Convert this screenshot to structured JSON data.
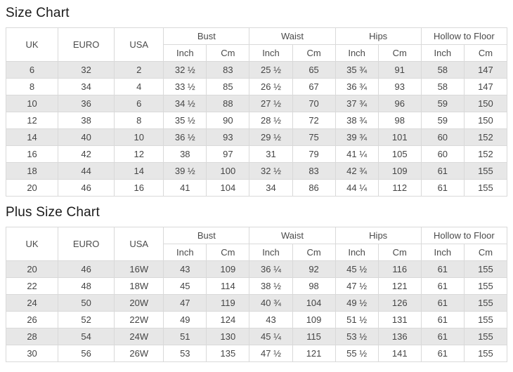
{
  "colors": {
    "stripe": "#e7e7e7",
    "border": "#d9d9d9",
    "cell_text": "#454545",
    "title_text": "#1a1a1a",
    "background": "#ffffff"
  },
  "tables": [
    {
      "title": "Size Chart",
      "simple_headers": [
        "UK",
        "EURO",
        "USA"
      ],
      "group_headers": [
        {
          "label": "Bust",
          "sub": [
            "Inch",
            "Cm"
          ]
        },
        {
          "label": "Waist",
          "sub": [
            "Inch",
            "Cm"
          ]
        },
        {
          "label": "Hips",
          "sub": [
            "Inch",
            "Cm"
          ]
        },
        {
          "label": "Hollow to Floor",
          "sub": [
            "Inch",
            "Cm"
          ]
        }
      ],
      "rows": [
        [
          "6",
          "32",
          "2",
          "32 ½",
          "83",
          "25 ½",
          "65",
          "35 ¾",
          "91",
          "58",
          "147"
        ],
        [
          "8",
          "34",
          "4",
          "33 ½",
          "85",
          "26 ½",
          "67",
          "36 ¾",
          "93",
          "58",
          "147"
        ],
        [
          "10",
          "36",
          "6",
          "34 ½",
          "88",
          "27 ½",
          "70",
          "37 ¾",
          "96",
          "59",
          "150"
        ],
        [
          "12",
          "38",
          "8",
          "35 ½",
          "90",
          "28 ½",
          "72",
          "38 ¾",
          "98",
          "59",
          "150"
        ],
        [
          "14",
          "40",
          "10",
          "36 ½",
          "93",
          "29 ½",
          "75",
          "39 ¾",
          "101",
          "60",
          "152"
        ],
        [
          "16",
          "42",
          "12",
          "38",
          "97",
          "31",
          "79",
          "41 ¼",
          "105",
          "60",
          "152"
        ],
        [
          "18",
          "44",
          "14",
          "39 ½",
          "100",
          "32 ½",
          "83",
          "42 ¾",
          "109",
          "61",
          "155"
        ],
        [
          "20",
          "46",
          "16",
          "41",
          "104",
          "34",
          "86",
          "44 ¼",
          "112",
          "61",
          "155"
        ]
      ]
    },
    {
      "title": "Plus Size Chart",
      "simple_headers": [
        "UK",
        "EURO",
        "USA"
      ],
      "group_headers": [
        {
          "label": "Bust",
          "sub": [
            "Inch",
            "Cm"
          ]
        },
        {
          "label": "Waist",
          "sub": [
            "Inch",
            "Cm"
          ]
        },
        {
          "label": "Hips",
          "sub": [
            "Inch",
            "Cm"
          ]
        },
        {
          "label": "Hollow to Floor",
          "sub": [
            "Inch",
            "Cm"
          ]
        }
      ],
      "rows": [
        [
          "20",
          "46",
          "16W",
          "43",
          "109",
          "36 ¼",
          "92",
          "45 ½",
          "116",
          "61",
          "155"
        ],
        [
          "22",
          "48",
          "18W",
          "45",
          "114",
          "38 ½",
          "98",
          "47 ½",
          "121",
          "61",
          "155"
        ],
        [
          "24",
          "50",
          "20W",
          "47",
          "119",
          "40 ¾",
          "104",
          "49 ½",
          "126",
          "61",
          "155"
        ],
        [
          "26",
          "52",
          "22W",
          "49",
          "124",
          "43",
          "109",
          "51 ½",
          "131",
          "61",
          "155"
        ],
        [
          "28",
          "54",
          "24W",
          "51",
          "130",
          "45 ¼",
          "115",
          "53 ½",
          "136",
          "61",
          "155"
        ],
        [
          "30",
          "56",
          "26W",
          "53",
          "135",
          "47 ½",
          "121",
          "55 ½",
          "141",
          "61",
          "155"
        ]
      ]
    }
  ]
}
